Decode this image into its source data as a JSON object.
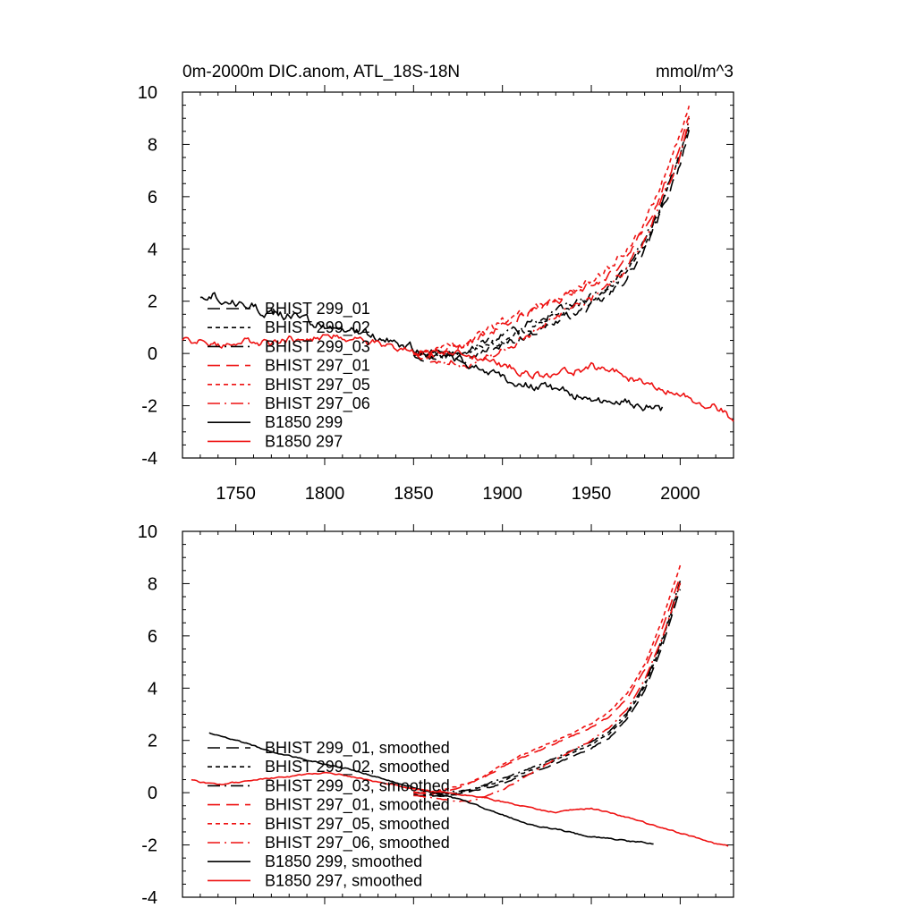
{
  "header": {
    "left": "0m-2000m DIC.anom, ATL_18S-18N",
    "right": "mmol/m^3"
  },
  "colors": {
    "black": "#000000",
    "red": "#ee1111"
  },
  "chart_data": [
    {
      "type": "line",
      "title": "0m-2000m DIC.anom, ATL_18S-18N",
      "units": "mmol/m^3",
      "xlim": [
        1720,
        2030
      ],
      "ylim": [
        -4,
        10
      ],
      "x_ticks": [
        1750,
        1800,
        1850,
        1900,
        1950,
        2000
      ],
      "y_ticks": [
        10,
        8,
        6,
        4,
        2,
        0,
        -2,
        -4
      ],
      "x_tick_labels": [
        "1750",
        "1800",
        "1850",
        "1900",
        "1950",
        "2000"
      ],
      "y_tick_labels": [
        "10",
        "8",
        "6",
        "4",
        "2",
        "0",
        "-2",
        "-4"
      ],
      "grid": false,
      "legend": "lower-left",
      "series": [
        {
          "name": "BHIST 299_01",
          "color": "black",
          "dash": "long-dash",
          "noise": 0.12,
          "x": [
            1850,
            1860,
            1870,
            1880,
            1890,
            1900,
            1910,
            1920,
            1930,
            1940,
            1950,
            1960,
            1970,
            1980,
            1990,
            2000,
            2005
          ],
          "y": [
            0.0,
            -0.15,
            -0.1,
            -0.1,
            0.1,
            0.3,
            0.6,
            0.9,
            1.2,
            1.5,
            1.8,
            2.2,
            2.9,
            3.9,
            5.5,
            7.3,
            8.6
          ]
        },
        {
          "name": "BHIST 299_02",
          "color": "black",
          "dash": "short-dash",
          "noise": 0.12,
          "x": [
            1850,
            1860,
            1870,
            1880,
            1890,
            1900,
            1910,
            1920,
            1930,
            1940,
            1950,
            1960,
            1970,
            1980,
            1990,
            2000,
            2005
          ],
          "y": [
            0.0,
            -0.1,
            -0.05,
            0.05,
            0.3,
            0.5,
            0.8,
            1.1,
            1.4,
            1.7,
            2.0,
            2.4,
            3.1,
            4.1,
            5.7,
            7.5,
            8.8
          ]
        },
        {
          "name": "BHIST 299_03",
          "color": "black",
          "dash": "dash-dot",
          "noise": 0.12,
          "x": [
            1850,
            1860,
            1870,
            1880,
            1890,
            1900,
            1910,
            1920,
            1930,
            1940,
            1950,
            1960,
            1970,
            1980,
            1990,
            2000,
            2005
          ],
          "y": [
            0.05,
            -0.05,
            0.0,
            0.15,
            0.4,
            0.7,
            1.0,
            1.3,
            1.6,
            1.9,
            2.2,
            2.6,
            3.3,
            4.3,
            5.8,
            7.6,
            8.9
          ]
        },
        {
          "name": "BHIST 297_01",
          "color": "red",
          "dash": "long-dash",
          "noise": 0.12,
          "x": [
            1850,
            1860,
            1870,
            1880,
            1890,
            1900,
            1910,
            1920,
            1930,
            1940,
            1950,
            1960,
            1970,
            1980,
            1990,
            2000,
            2005
          ],
          "y": [
            0.0,
            -0.05,
            0.1,
            0.3,
            0.7,
            1.1,
            1.4,
            1.7,
            2.0,
            2.3,
            2.6,
            3.0,
            3.7,
            4.7,
            6.2,
            7.9,
            9.2
          ]
        },
        {
          "name": "BHIST 297_05",
          "color": "red",
          "dash": "short-dash",
          "noise": 0.12,
          "x": [
            1850,
            1860,
            1870,
            1880,
            1890,
            1900,
            1910,
            1920,
            1930,
            1940,
            1950,
            1960,
            1970,
            1980,
            1990,
            2000,
            2005
          ],
          "y": [
            0.05,
            0.0,
            0.2,
            0.4,
            0.8,
            1.2,
            1.5,
            1.8,
            2.1,
            2.4,
            2.8,
            3.3,
            4.0,
            5.0,
            6.6,
            8.3,
            9.6
          ]
        },
        {
          "name": "BHIST 297_06",
          "color": "red",
          "dash": "dash-dot",
          "noise": 0.12,
          "x": [
            1850,
            1860,
            1870,
            1880,
            1890,
            1900,
            1910,
            1920,
            1930,
            1940,
            1950,
            1960,
            1970,
            1980,
            1990,
            2000,
            2005
          ],
          "y": [
            0.0,
            -0.2,
            -0.3,
            -0.5,
            -0.2,
            0.1,
            0.5,
            0.9,
            1.3,
            1.7,
            2.1,
            2.6,
            3.3,
            4.3,
            5.9,
            7.6,
            8.9
          ]
        },
        {
          "name": "B1850 299",
          "color": "black",
          "dash": "solid",
          "noise": 0.14,
          "x": [
            1730,
            1735,
            1740,
            1750,
            1760,
            1770,
            1780,
            1790,
            1800,
            1810,
            1820,
            1830,
            1840,
            1850,
            1860,
            1870,
            1880,
            1890,
            1900,
            1910,
            1920,
            1930,
            1940,
            1950,
            1960,
            1970,
            1980,
            1990
          ],
          "y": [
            2.2,
            2.35,
            2.2,
            2.0,
            1.8,
            1.5,
            1.4,
            1.25,
            1.1,
            0.9,
            0.8,
            0.6,
            0.4,
            0.2,
            0.0,
            -0.1,
            -0.3,
            -0.6,
            -0.9,
            -1.1,
            -1.3,
            -1.4,
            -1.6,
            -1.7,
            -1.8,
            -1.9,
            -2.0,
            -2.1
          ]
        },
        {
          "name": "B1850 297",
          "color": "red",
          "dash": "solid",
          "noise": 0.12,
          "x": [
            1720,
            1730,
            1740,
            1750,
            1760,
            1770,
            1780,
            1790,
            1800,
            1810,
            1820,
            1830,
            1840,
            1850,
            1860,
            1870,
            1880,
            1890,
            1900,
            1910,
            1920,
            1930,
            1940,
            1950,
            1960,
            1970,
            1980,
            1990,
            2000,
            2010,
            2020,
            2030
          ],
          "y": [
            0.55,
            0.4,
            0.3,
            0.4,
            0.5,
            0.35,
            0.55,
            0.65,
            0.7,
            0.6,
            0.5,
            0.4,
            0.3,
            0.1,
            0.0,
            0.05,
            -0.1,
            -0.25,
            -0.45,
            -0.65,
            -0.8,
            -0.85,
            -0.7,
            -0.5,
            -0.65,
            -0.9,
            -1.1,
            -1.3,
            -1.6,
            -1.8,
            -2.0,
            -2.5
          ]
        }
      ]
    },
    {
      "type": "line",
      "xlim": [
        1720,
        2030
      ],
      "ylim": [
        -4,
        10
      ],
      "x_ticks": [
        1750,
        1800,
        1850,
        1900,
        1950,
        2000
      ],
      "y_ticks": [
        10,
        8,
        6,
        4,
        2,
        0,
        -2,
        -4
      ],
      "x_tick_labels": [],
      "y_tick_labels": [
        "10",
        "8",
        "6",
        "4",
        "2",
        "0",
        "-2",
        "-4"
      ],
      "grid": false,
      "legend": "lower-left",
      "series": [
        {
          "name": "BHIST 299_01, smoothed",
          "color": "black",
          "dash": "long-dash",
          "noise": 0.02,
          "x": [
            1850,
            1860,
            1870,
            1880,
            1890,
            1900,
            1910,
            1920,
            1930,
            1940,
            1950,
            1960,
            1970,
            1980,
            1990,
            2000
          ],
          "y": [
            -0.1,
            -0.15,
            -0.1,
            0.0,
            0.15,
            0.35,
            0.6,
            0.85,
            1.1,
            1.4,
            1.7,
            2.1,
            2.8,
            3.9,
            5.6,
            7.8
          ]
        },
        {
          "name": "BHIST 299_02, smoothed",
          "color": "black",
          "dash": "short-dash",
          "noise": 0.02,
          "x": [
            1850,
            1860,
            1870,
            1880,
            1890,
            1900,
            1910,
            1920,
            1930,
            1940,
            1950,
            1960,
            1970,
            1980,
            1990,
            2000
          ],
          "y": [
            -0.05,
            -0.1,
            -0.05,
            0.05,
            0.25,
            0.45,
            0.7,
            0.95,
            1.25,
            1.55,
            1.85,
            2.25,
            2.95,
            4.05,
            5.8,
            8.0
          ]
        },
        {
          "name": "BHIST 299_03, smoothed",
          "color": "black",
          "dash": "dash-dot",
          "noise": 0.02,
          "x": [
            1850,
            1860,
            1870,
            1880,
            1890,
            1900,
            1910,
            1920,
            1930,
            1940,
            1950,
            1960,
            1970,
            1980,
            1990,
            2000
          ],
          "y": [
            0.0,
            -0.05,
            0.0,
            0.1,
            0.3,
            0.55,
            0.8,
            1.05,
            1.35,
            1.65,
            1.95,
            2.35,
            3.05,
            4.15,
            5.9,
            8.1
          ]
        },
        {
          "name": "BHIST 297_01, smoothed",
          "color": "red",
          "dash": "long-dash",
          "noise": 0.02,
          "x": [
            1850,
            1860,
            1870,
            1880,
            1890,
            1900,
            1910,
            1920,
            1930,
            1940,
            1950,
            1960,
            1970,
            1980,
            1990,
            2000
          ],
          "y": [
            0.0,
            -0.05,
            0.1,
            0.3,
            0.6,
            1.0,
            1.3,
            1.6,
            1.9,
            2.2,
            2.5,
            2.9,
            3.6,
            4.7,
            6.3,
            8.3
          ]
        },
        {
          "name": "BHIST 297_05, smoothed",
          "color": "red",
          "dash": "short-dash",
          "noise": 0.02,
          "x": [
            1850,
            1860,
            1870,
            1880,
            1890,
            1900,
            1910,
            1920,
            1930,
            1940,
            1950,
            1960,
            1970,
            1980,
            1990,
            2000
          ],
          "y": [
            0.05,
            0.0,
            0.15,
            0.35,
            0.65,
            1.05,
            1.4,
            1.7,
            2.0,
            2.3,
            2.65,
            3.1,
            3.8,
            4.9,
            6.6,
            8.7
          ]
        },
        {
          "name": "BHIST 297_06, smoothed",
          "color": "red",
          "dash": "dash-dot",
          "noise": 0.02,
          "x": [
            1850,
            1860,
            1870,
            1880,
            1890,
            1900,
            1910,
            1920,
            1930,
            1940,
            1950,
            1960,
            1970,
            1980,
            1990,
            2000
          ],
          "y": [
            -0.1,
            -0.2,
            -0.3,
            -0.35,
            -0.15,
            0.1,
            0.5,
            0.9,
            1.3,
            1.65,
            2.0,
            2.5,
            3.2,
            4.3,
            5.9,
            8.0
          ]
        },
        {
          "name": "B1850 299, smoothed",
          "color": "black",
          "dash": "solid",
          "noise": 0.02,
          "x": [
            1735,
            1740,
            1750,
            1760,
            1770,
            1780,
            1790,
            1800,
            1810,
            1820,
            1830,
            1840,
            1850,
            1860,
            1870,
            1880,
            1890,
            1900,
            1910,
            1920,
            1930,
            1940,
            1950,
            1960,
            1970,
            1980,
            1985
          ],
          "y": [
            2.3,
            2.2,
            2.0,
            1.8,
            1.55,
            1.4,
            1.25,
            1.1,
            0.95,
            0.8,
            0.6,
            0.4,
            0.2,
            0.0,
            -0.15,
            -0.35,
            -0.6,
            -0.85,
            -1.1,
            -1.3,
            -1.4,
            -1.55,
            -1.7,
            -1.75,
            -1.85,
            -1.9,
            -1.95
          ]
        },
        {
          "name": "B1850 297, smoothed",
          "color": "red",
          "dash": "solid",
          "noise": 0.02,
          "x": [
            1725,
            1730,
            1740,
            1750,
            1760,
            1770,
            1780,
            1790,
            1800,
            1810,
            1820,
            1830,
            1840,
            1850,
            1860,
            1870,
            1880,
            1890,
            1900,
            1910,
            1920,
            1930,
            1940,
            1950,
            1960,
            1970,
            1980,
            1990,
            2000,
            2010,
            2020,
            2027
          ],
          "y": [
            0.5,
            0.4,
            0.3,
            0.4,
            0.5,
            0.55,
            0.6,
            0.7,
            0.75,
            0.7,
            0.55,
            0.4,
            0.3,
            0.15,
            0.05,
            0.0,
            -0.1,
            -0.2,
            -0.35,
            -0.5,
            -0.65,
            -0.75,
            -0.65,
            -0.6,
            -0.75,
            -0.95,
            -1.15,
            -1.35,
            -1.55,
            -1.75,
            -1.95,
            -2.05
          ]
        }
      ]
    }
  ]
}
